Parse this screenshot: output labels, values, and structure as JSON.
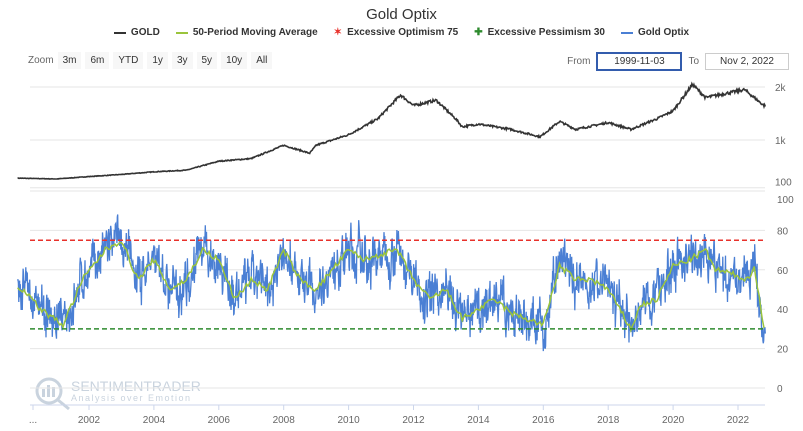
{
  "title": "Gold Optix",
  "legend": [
    {
      "label": "GOLD",
      "color": "#333333"
    },
    {
      "label": "50-Period Moving Average",
      "color": "#9ac43c"
    },
    {
      "label": "Excessive Optimism 75",
      "color": "#e8312b"
    },
    {
      "label": "Excessive Pessimism 30",
      "color": "#2e8b2e"
    },
    {
      "label": "Gold Optix",
      "color": "#4a7fd4"
    }
  ],
  "zoom": {
    "label": "Zoom",
    "buttons": [
      "3m",
      "6m",
      "YTD",
      "1y",
      "3y",
      "5y",
      "10y",
      "All"
    ]
  },
  "range": {
    "from_label": "From",
    "from_value": "1999-11-03",
    "to_label": "To",
    "to_value": "Nov 2, 2022"
  },
  "watermark": {
    "brand": "SENTIMENTRADER",
    "tagline": "Analysis over Emotion"
  },
  "chart_data": [
    {
      "type": "line",
      "title": "GOLD",
      "yaxis_ticks": [
        "100",
        "1k",
        "2k"
      ],
      "ylim": [
        100,
        2000
      ],
      "series": [
        {
          "name": "GOLD",
          "x": [
            1999.8,
            2001,
            2002,
            2003,
            2004,
            2005,
            2006,
            2007,
            2008,
            2008.8,
            2009,
            2010,
            2010.9,
            2011.6,
            2012,
            2012.7,
            2013.3,
            2013.5,
            2014,
            2015,
            2015.9,
            2016.5,
            2017,
            2018,
            2018.7,
            2019.5,
            2020,
            2020.6,
            2021,
            2022.2,
            2022.8
          ],
          "y": [
            280,
            265,
            310,
            350,
            400,
            430,
            600,
            650,
            900,
            750,
            900,
            1100,
            1400,
            1850,
            1650,
            1750,
            1400,
            1250,
            1300,
            1200,
            1060,
            1350,
            1200,
            1330,
            1200,
            1400,
            1550,
            2050,
            1800,
            1950,
            1650
          ]
        }
      ]
    },
    {
      "type": "line",
      "title": "Gold Optix",
      "yaxis_ticks": [
        "0",
        "20",
        "40",
        "60",
        "80",
        "100"
      ],
      "ylim": [
        0,
        100
      ],
      "xaxis_ticks": [
        "...",
        "2002",
        "2004",
        "2006",
        "2008",
        "2010",
        "2012",
        "2014",
        "2016",
        "2018",
        "2020",
        "2022"
      ],
      "thresholds": [
        {
          "name": "Excessive Optimism 75",
          "value": 75
        },
        {
          "name": "Excessive Pessimism 30",
          "value": 30
        }
      ],
      "series": [
        {
          "name": "50-Period Moving Average",
          "x": [
            1999.8,
            2000,
            2000.5,
            2001.2,
            2001.8,
            2002.5,
            2003,
            2003.5,
            2004,
            2004.5,
            2005,
            2005.5,
            2006,
            2006.5,
            2007,
            2007.5,
            2008,
            2008.5,
            2009,
            2009.5,
            2010,
            2010.5,
            2011,
            2011.5,
            2012,
            2012.5,
            2013,
            2013.5,
            2014,
            2014.5,
            2015,
            2015.5,
            2016,
            2016.5,
            2017,
            2017.5,
            2018,
            2018.7,
            2019,
            2019.5,
            2020,
            2020.5,
            2021,
            2021.3,
            2021.8,
            2022.3,
            2022.5,
            2022.8
          ],
          "y": [
            50,
            50,
            40,
            32,
            55,
            70,
            75,
            55,
            65,
            50,
            55,
            70,
            65,
            45,
            55,
            50,
            70,
            55,
            50,
            60,
            70,
            65,
            68,
            70,
            55,
            45,
            50,
            35,
            40,
            45,
            38,
            35,
            32,
            62,
            55,
            55,
            50,
            30,
            42,
            45,
            62,
            65,
            70,
            60,
            58,
            55,
            62,
            30
          ]
        }
      ]
    }
  ]
}
